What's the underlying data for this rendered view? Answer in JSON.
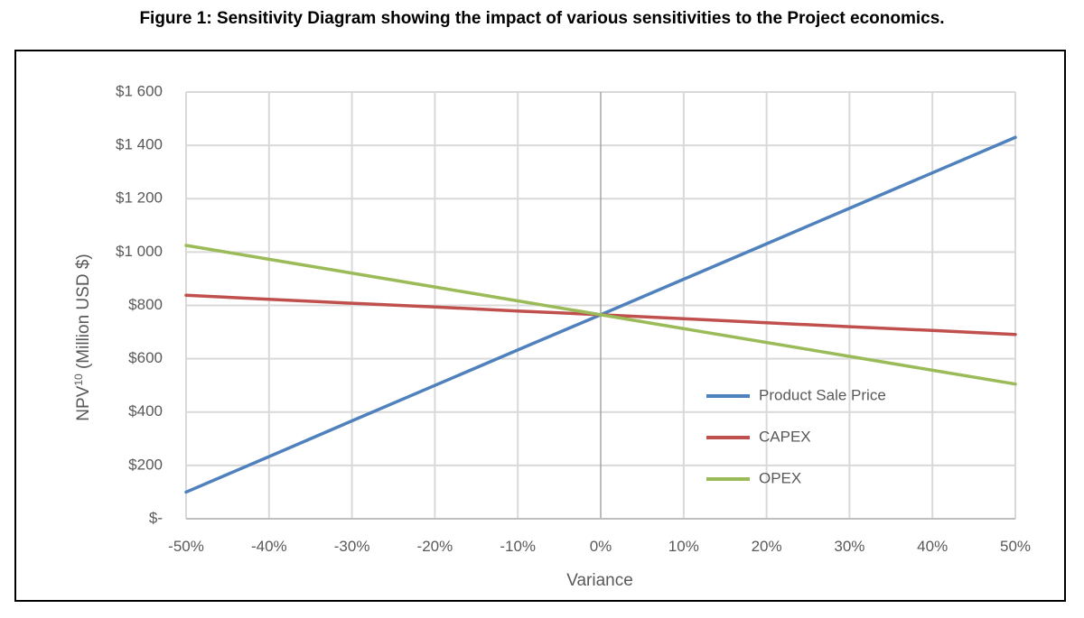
{
  "figure": {
    "title": "Figure 1: Sensitivity Diagram showing the impact of various sensitivities to the Project economics."
  },
  "chart_data": {
    "type": "line",
    "title": "",
    "xlabel": "Variance",
    "ylabel_main": "NPV",
    "ylabel_sup": "10",
    "ylabel_rest": " (Million USD $)",
    "x": [
      -50,
      -40,
      -30,
      -20,
      -10,
      0,
      10,
      20,
      30,
      40,
      50
    ],
    "x_tick_labels": [
      "-50%",
      "-40%",
      "-30%",
      "-20%",
      "-10%",
      "0%",
      "10%",
      "20%",
      "30%",
      "40%",
      "50%"
    ],
    "y_ticks": [
      0,
      200,
      400,
      600,
      800,
      1000,
      1200,
      1400,
      1600
    ],
    "y_tick_labels": [
      "$-",
      "$200",
      "$400",
      "$600",
      "$800",
      "$1 000",
      "$1 200",
      "$1 400",
      "$1 600"
    ],
    "xlim": [
      -50,
      50
    ],
    "ylim": [
      0,
      1600
    ],
    "grid": true,
    "legend_position": "bottom-right",
    "series": [
      {
        "name": "Product Sale Price",
        "color": "#4f81bd",
        "values": [
          100,
          233,
          367,
          500,
          633,
          765,
          898,
          1031,
          1164,
          1297,
          1430
        ]
      },
      {
        "name": "CAPEX",
        "color": "#c0504d",
        "values": [
          838,
          823,
          808,
          794,
          779,
          765,
          750,
          735,
          720,
          706,
          691
        ]
      },
      {
        "name": "OPEX",
        "color": "#9bbb59",
        "values": [
          1025,
          973,
          921,
          869,
          817,
          765,
          713,
          661,
          609,
          557,
          505
        ]
      }
    ]
  }
}
